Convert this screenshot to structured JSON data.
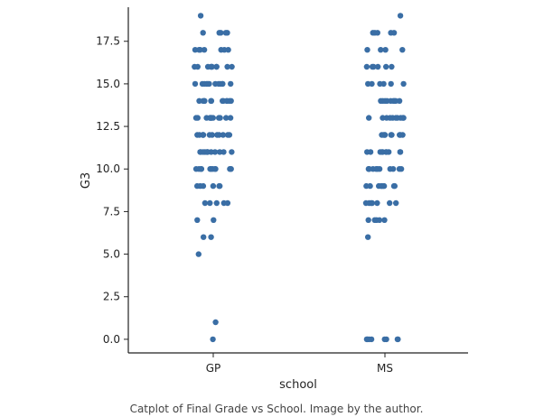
{
  "chart_data": {
    "type": "scatter",
    "subtype": "categorical strip plot (catplot)",
    "xlabel": "school",
    "ylabel": "G3",
    "categories": [
      "GP",
      "MS"
    ],
    "ylim": [
      -0.8,
      19.5
    ],
    "yticks": [
      0.0,
      2.5,
      5.0,
      7.5,
      10.0,
      12.5,
      15.0,
      17.5
    ],
    "ytick_labels": [
      "0.0",
      "2.5",
      "5.0",
      "7.5",
      "10.0",
      "12.5",
      "15.0",
      "17.5"
    ],
    "grid": false,
    "point_color": "#3a6ea5",
    "series": [
      {
        "values": [
          0,
          1,
          5,
          6,
          6,
          7,
          7,
          8,
          8,
          8,
          8,
          8,
          9,
          9,
          9,
          9,
          9,
          9,
          10,
          10,
          10,
          10,
          10,
          10,
          10,
          10,
          10,
          10,
          10,
          10,
          11,
          11,
          11,
          11,
          11,
          11,
          11,
          11,
          11,
          11,
          11,
          11,
          12,
          12,
          12,
          12,
          12,
          12,
          12,
          12,
          12,
          12,
          12,
          12,
          13,
          13,
          13,
          13,
          13,
          13,
          13,
          13,
          13,
          13,
          13,
          13,
          14,
          14,
          14,
          14,
          14,
          14,
          14,
          14,
          14,
          14,
          14,
          14,
          15,
          15,
          15,
          15,
          15,
          15,
          15,
          15,
          15,
          15,
          15,
          15,
          16,
          16,
          16,
          16,
          16,
          16,
          16,
          16,
          16,
          16,
          17,
          17,
          17,
          17,
          17,
          17,
          17,
          18,
          18,
          18,
          18,
          18,
          19
        ]
      },
      {
        "values": [
          0,
          0,
          0,
          0,
          0,
          0,
          0,
          0,
          6,
          7,
          7,
          7,
          7,
          7,
          8,
          8,
          8,
          8,
          8,
          8,
          8,
          9,
          9,
          9,
          9,
          9,
          9,
          9,
          9,
          9,
          10,
          10,
          10,
          10,
          10,
          10,
          10,
          10,
          10,
          10,
          10,
          11,
          11,
          11,
          11,
          11,
          11,
          11,
          11,
          11,
          11,
          12,
          12,
          12,
          12,
          12,
          12,
          12,
          12,
          12,
          13,
          13,
          13,
          13,
          13,
          13,
          13,
          13,
          13,
          13,
          14,
          14,
          14,
          14,
          14,
          14,
          14,
          14,
          14,
          15,
          15,
          15,
          15,
          15,
          15,
          16,
          16,
          16,
          16,
          16,
          16,
          17,
          17,
          17,
          17,
          18,
          18,
          18,
          18,
          18,
          19
        ]
      }
    ]
  },
  "caption": "Catplot of Final Grade vs School. Image by the author."
}
